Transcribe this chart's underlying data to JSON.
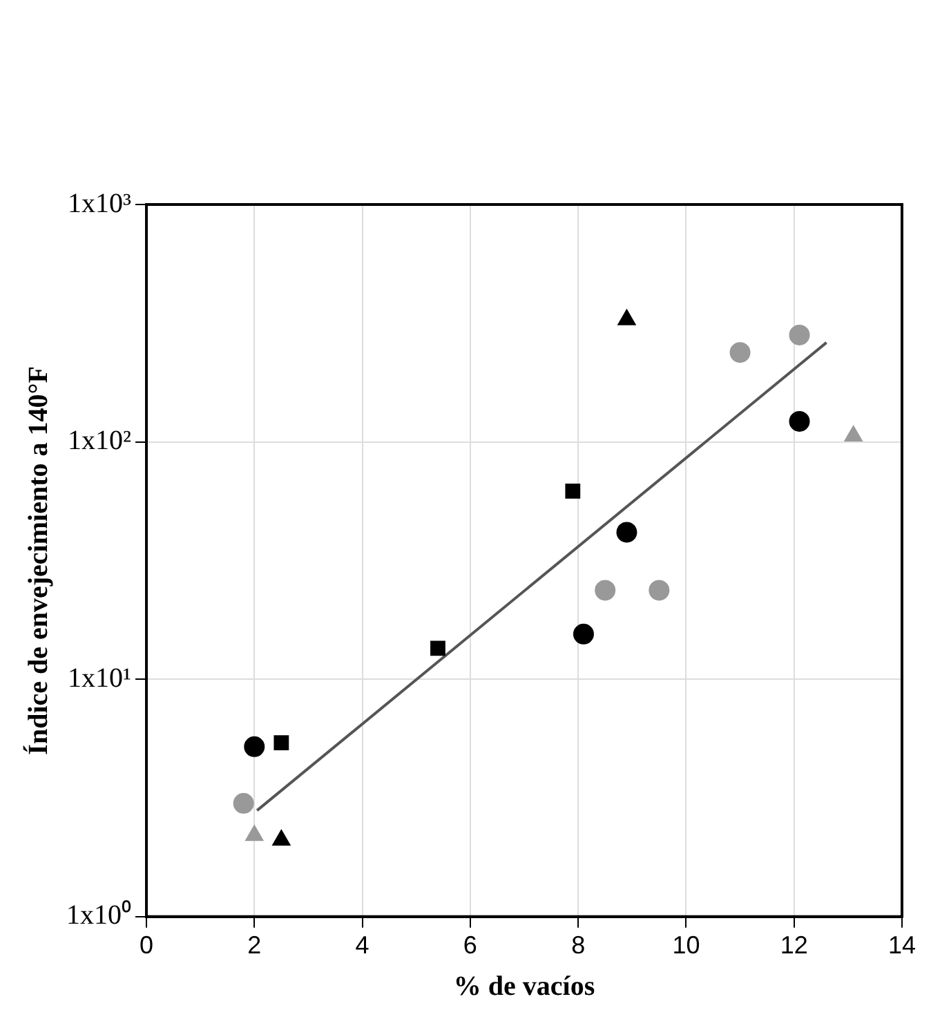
{
  "chart_data": {
    "type": "scatter",
    "xlabel": "% de vacíos",
    "ylabel": "Índice de envejecimiento a 140°F",
    "log": "y",
    "xlim": [
      0,
      14
    ],
    "xticks": [
      0,
      2,
      4,
      6,
      8,
      10,
      12,
      14
    ],
    "ylim": [
      1,
      1000
    ],
    "yticks": [
      {
        "value": 1,
        "label": "1x10⁰"
      },
      {
        "value": 10,
        "label": "1x10¹"
      },
      {
        "value": 100,
        "label": "1x10²"
      },
      {
        "value": 1000,
        "label": "1x10³"
      }
    ],
    "grid": true,
    "legend": false,
    "series": [
      {
        "color": "#000000",
        "marker": "square",
        "x": [
          2.5,
          5.4,
          7.9
        ],
        "values": [
          5.4,
          13.5,
          62
        ]
      },
      {
        "color": "#000000",
        "marker": "triangle",
        "x": [
          2.5,
          8.9
        ],
        "values": [
          2.1,
          327
        ]
      },
      {
        "color": "#999999",
        "marker": "circle",
        "x": [
          1.8,
          8.5,
          9.5,
          11.0,
          12.1
        ],
        "values": [
          3.0,
          23.7,
          23.7,
          238,
          282
        ]
      },
      {
        "color": "#999999",
        "marker": "triangle",
        "x": [
          2.0,
          13.1
        ],
        "values": [
          2.2,
          106
        ]
      },
      {
        "color": "#000000",
        "marker": "circle",
        "x": [
          2.0,
          8.1,
          8.9,
          12.1
        ],
        "values": [
          5.2,
          15.5,
          41.6,
          122
        ]
      },
      {
        "type": "line",
        "color": "#555555",
        "marker": "none",
        "x": [
          2.05,
          12.6
        ],
        "values": [
          2.8,
          262
        ]
      }
    ]
  }
}
